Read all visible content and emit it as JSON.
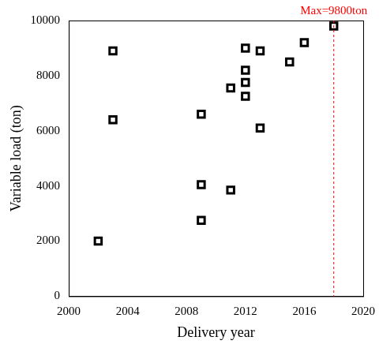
{
  "chart_data": {
    "type": "scatter",
    "x_label": "Delivery year",
    "y_label": "Variable load (ton)",
    "x": [
      2002,
      2003,
      2003,
      2009,
      2009,
      2009,
      2011,
      2011,
      2012,
      2012,
      2012,
      2012,
      2013,
      2013,
      2015,
      2016,
      2018
    ],
    "values": [
      2000,
      8900,
      6400,
      6600,
      4050,
      2750,
      3850,
      7550,
      9000,
      8200,
      7750,
      7250,
      8900,
      6100,
      8500,
      9200,
      9800
    ],
    "color": "#000000",
    "marker": "square",
    "xlim": [
      2000,
      2020
    ],
    "xticks": [
      2000,
      2004,
      2008,
      2012,
      2016,
      2020
    ],
    "ylim": [
      0,
      10000
    ],
    "yticks": [
      0,
      2000,
      4000,
      6000,
      8000,
      10000
    ],
    "grid": false,
    "annotations": [
      {
        "text": "Max=9800ton",
        "x": 2018,
        "color": "#ff0000",
        "line_style": "dashed"
      }
    ]
  }
}
